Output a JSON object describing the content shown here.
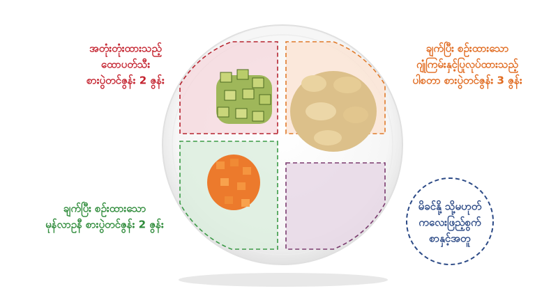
{
  "labels": {
    "avocado": [
      "အတုံးတုံးထားသည့်",
      "ထောပတ်သီး",
      "စားပွဲတင်ဇွန်း 2 ဇွန်း"
    ],
    "pasta": [
      "ချက်ပြီး စဉ်းထားသော",
      "ဂျုံကြမ်းနှင့်ပြုလုပ်ထားသည့်",
      "ပါစတာ စားပွဲတင်ဇွန်း 3 ဇွန်း"
    ],
    "carrot": [
      "ချက်ပြီး စဉ်းထားသော",
      "မုန်လာဥနီ စားပွဲတင်ဇွန်း 2 ဇွန်း"
    ],
    "milk": [
      "မိခင်နို့ သို့မဟုတ်",
      "ကလေးဖြည့်စွက်",
      "စာနှင့်အတူ"
    ]
  }
}
